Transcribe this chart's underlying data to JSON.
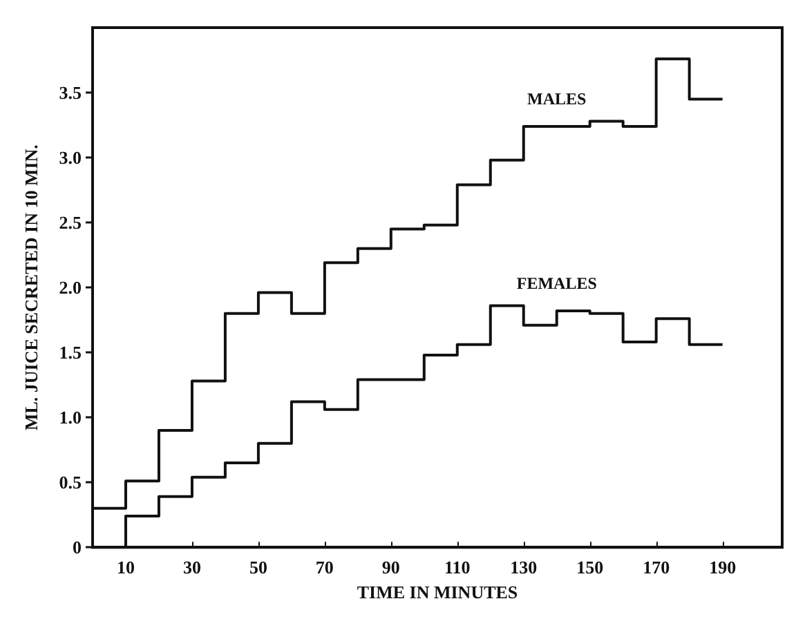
{
  "chart_data": {
    "type": "step",
    "xlabel": "TIME IN MINUTES",
    "ylabel": "ML. JUICE SECRETED IN 10 MIN.",
    "x": [
      0,
      10,
      20,
      30,
      40,
      50,
      60,
      70,
      80,
      90,
      100,
      110,
      120,
      130,
      140,
      150,
      160,
      170,
      180,
      190
    ],
    "series": [
      {
        "name": "MALES",
        "color": "#111111",
        "values": [
          0.3,
          0.51,
          0.9,
          1.28,
          1.8,
          1.96,
          1.8,
          2.19,
          2.3,
          2.45,
          2.48,
          2.79,
          2.98,
          3.24,
          3.24,
          3.28,
          3.24,
          3.76,
          3.45,
          3.45
        ]
      },
      {
        "name": "FEMALES",
        "color": "#111111",
        "values": [
          0,
          0.24,
          0.39,
          0.54,
          0.65,
          0.8,
          1.12,
          1.06,
          1.29,
          1.29,
          1.48,
          1.56,
          1.86,
          1.71,
          1.82,
          1.8,
          1.58,
          1.76,
          1.56,
          1.56
        ]
      }
    ],
    "xlim": [
      0,
      208
    ],
    "xticks": [
      10,
      30,
      50,
      70,
      90,
      110,
      130,
      150,
      170,
      190
    ],
    "ylim": [
      0,
      4
    ],
    "yticks": [
      0,
      {
        "value": 0.5,
        "label": "0.5"
      },
      {
        "value": 1,
        "label": "1.0"
      },
      {
        "value": 1.5,
        "label": "1.5"
      },
      {
        "value": 2,
        "label": "2.0"
      },
      {
        "value": 2.5,
        "label": "2.5"
      },
      {
        "value": 3,
        "label": "3.0"
      },
      {
        "value": 3.5,
        "label": "3.5"
      }
    ],
    "grid": false,
    "legend": false,
    "marker": "none",
    "line_style": "solid"
  }
}
